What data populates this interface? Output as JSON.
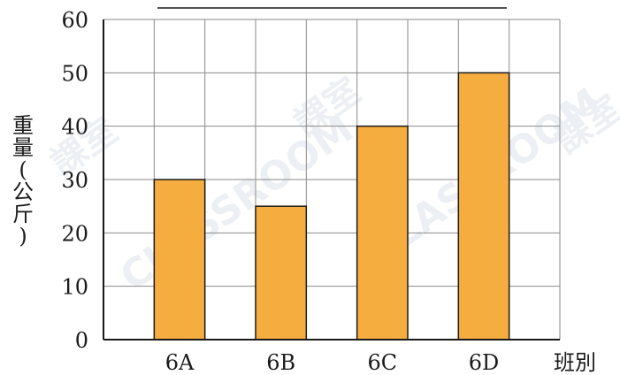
{
  "chart_data": {
    "type": "bar",
    "title": "",
    "categories": [
      "6A",
      "6B",
      "6C",
      "6D"
    ],
    "values": [
      30,
      25,
      40,
      50
    ],
    "ylabel": "重量(公斤)",
    "xlabel": "班別",
    "ylim": [
      0,
      60
    ],
    "yticks": [
      0,
      10,
      20,
      30,
      40,
      50,
      60
    ],
    "grid": true,
    "bar_color": "#f6ad3f",
    "bar_edge_color": "#1a1a1a",
    "grid_color": "#8a8a8a"
  },
  "watermark": {
    "text": "CLASSROOM",
    "brand": "課室"
  }
}
